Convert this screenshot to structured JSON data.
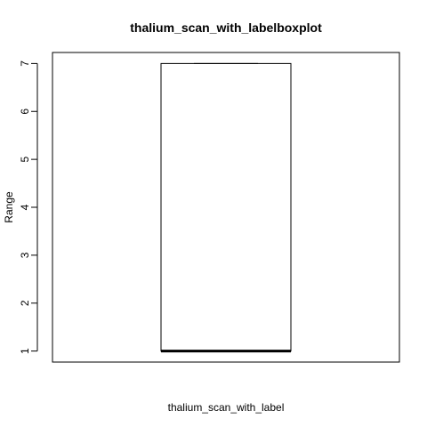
{
  "chart_data": {
    "type": "boxplot",
    "title": "thalium_scan_with_labelboxplot",
    "xlabel": "thalium_scan_with_label",
    "ylabel": "Range",
    "ylim": [
      0.77,
      7.23
    ],
    "y_ticks": [
      1,
      2,
      3,
      4,
      5,
      6,
      7
    ],
    "grid": false,
    "legend": "none",
    "boxes": [
      {
        "min": 1,
        "q1": 1,
        "median": 1,
        "q3": 7,
        "max": 7
      }
    ]
  },
  "colors": {
    "box_stroke": "#000000",
    "median": "#000000",
    "background": "#ffffff"
  }
}
